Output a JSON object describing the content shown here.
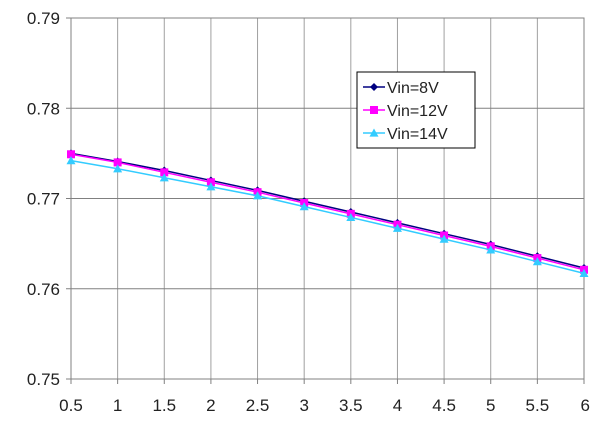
{
  "chart_data": {
    "type": "line",
    "x": [
      0.5,
      1,
      1.5,
      2,
      2.5,
      3,
      3.5,
      4,
      4.5,
      5,
      5.5,
      6
    ],
    "xlim": [
      0.5,
      6
    ],
    "ylim": [
      0.75,
      0.79
    ],
    "x_ticks": [
      "0.5",
      "1",
      "1.5",
      "2",
      "2.5",
      "3",
      "3.5",
      "4",
      "4.5",
      "5",
      "5.5",
      "6"
    ],
    "y_ticks": [
      "0.75",
      "0.76",
      "0.77",
      "0.78",
      "0.79"
    ],
    "grid": true,
    "legend_position": "top-right",
    "series": [
      {
        "name": "Vin=8V",
        "color": "#000080",
        "marker": "diamond",
        "values": [
          0.775,
          0.7741,
          0.7731,
          0.772,
          0.7709,
          0.7697,
          0.7685,
          0.7673,
          0.7661,
          0.7649,
          0.7636,
          0.7623
        ]
      },
      {
        "name": "Vin=12V",
        "color": "#ff00ff",
        "marker": "square",
        "values": [
          0.7749,
          0.774,
          0.7729,
          0.7718,
          0.7707,
          0.7695,
          0.7683,
          0.7671,
          0.7659,
          0.7647,
          0.7634,
          0.7621
        ]
      },
      {
        "name": "Vin=14V",
        "color": "#33ccff",
        "marker": "triangle",
        "values": [
          0.7742,
          0.7733,
          0.7723,
          0.7713,
          0.7703,
          0.7691,
          0.7679,
          0.7667,
          0.7655,
          0.7643,
          0.763,
          0.7617
        ]
      }
    ]
  }
}
